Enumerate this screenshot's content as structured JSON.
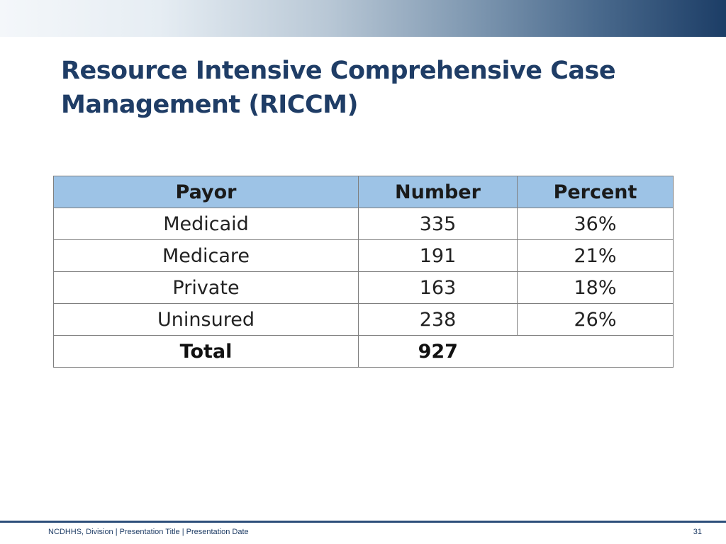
{
  "slide": {
    "title": "Resource Intensive Comprehensive Case Management (RICCM)"
  },
  "table": {
    "headers": [
      "Payor",
      "Number",
      "Percent"
    ],
    "rows": [
      {
        "payor": "Medicaid",
        "number": "335",
        "percent": "36%"
      },
      {
        "payor": "Medicare",
        "number": "191",
        "percent": "21%"
      },
      {
        "payor": "Private",
        "number": "163",
        "percent": "18%"
      },
      {
        "payor": "Uninsured",
        "number": "238",
        "percent": "26%"
      }
    ],
    "total": {
      "label": "Total",
      "number": "927",
      "percent": ""
    }
  },
  "footer": {
    "text": "NCDHHS, Division | Presentation Title | Presentation Date",
    "page_number": "31"
  },
  "colors": {
    "title": "#1f3d66",
    "header_fill": "#9dc3e6",
    "footer_line": "#2d4f7a"
  }
}
